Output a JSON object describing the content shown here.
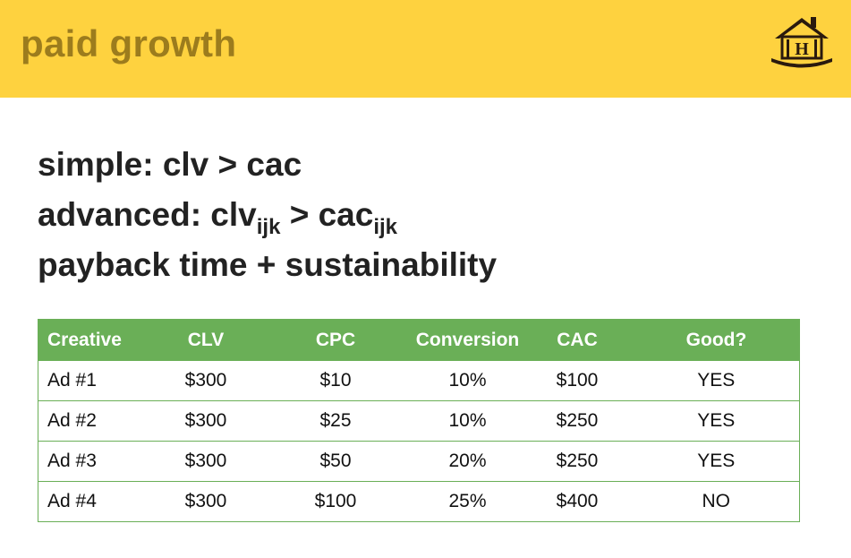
{
  "header": {
    "title": "paid growth",
    "background_color": "#fed23f",
    "title_color": "#9c7c1d",
    "logo": {
      "icon": "house-logo-icon",
      "letter": "H"
    }
  },
  "bullets": [
    {
      "text": "simple: clv > cac"
    },
    {
      "parts": [
        "advanced: clv",
        "ijk",
        " > cac",
        "ijk"
      ]
    },
    {
      "text": "payback time + sustainability"
    }
  ],
  "table": {
    "header_color": "#6aaf57",
    "columns": [
      "Creative",
      "CLV",
      "CPC",
      "Conversion",
      "CAC",
      "Good?"
    ],
    "rows": [
      [
        "Ad #1",
        "$300",
        "$10",
        "10%",
        "$100",
        "YES"
      ],
      [
        "Ad #2",
        "$300",
        "$25",
        "10%",
        "$250",
        "YES"
      ],
      [
        "Ad #3",
        "$300",
        "$50",
        "20%",
        "$250",
        "YES"
      ],
      [
        "Ad #4",
        "$300",
        "$100",
        "25%",
        "$400",
        "NO"
      ]
    ]
  }
}
